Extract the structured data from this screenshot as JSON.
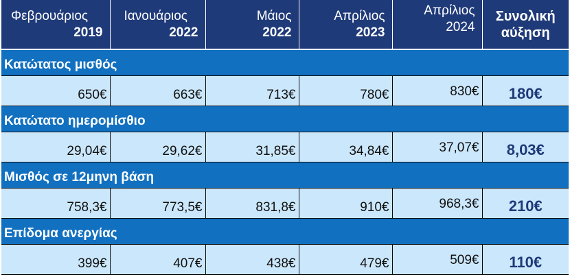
{
  "header": [
    {
      "month": "Φεβρουάριος",
      "year": "2019"
    },
    {
      "month": "Ιανουάριος",
      "year": "2022"
    },
    {
      "month": "Μάιος",
      "year": "2022"
    },
    {
      "month": "Απρίλιος",
      "year": "2023"
    },
    {
      "month": "Απρίλιος",
      "year": "2024"
    },
    {
      "line1": "Συνολική",
      "line2": "αύξηση"
    }
  ],
  "rows": [
    {
      "label": "Κατώτατος μισθός",
      "values": [
        "650€",
        "663€",
        "713€",
        "780€",
        "830€"
      ],
      "total": "180€"
    },
    {
      "label": "Κατώτατο ημερομίσθιο",
      "values": [
        "29,04€",
        "29,62€",
        "31,85€",
        "34,84€",
        "37,07€"
      ],
      "total": "8,03€"
    },
    {
      "label": "Μισθός σε 12μηνη βάση",
      "values": [
        "758,3€",
        "773,5€",
        "831,8€",
        "910€",
        "968,3€"
      ],
      "total": "210€"
    },
    {
      "label": "Επίδομα ανεργίας",
      "values": [
        "399€",
        "407€",
        "438€",
        "479€",
        "509€"
      ],
      "total": "110€"
    }
  ],
  "colors": {
    "header_bg": "#1f3a79",
    "category_bg": "#1270c0",
    "value_bg": "#cbe7fb",
    "total_text": "#1f3a79"
  }
}
